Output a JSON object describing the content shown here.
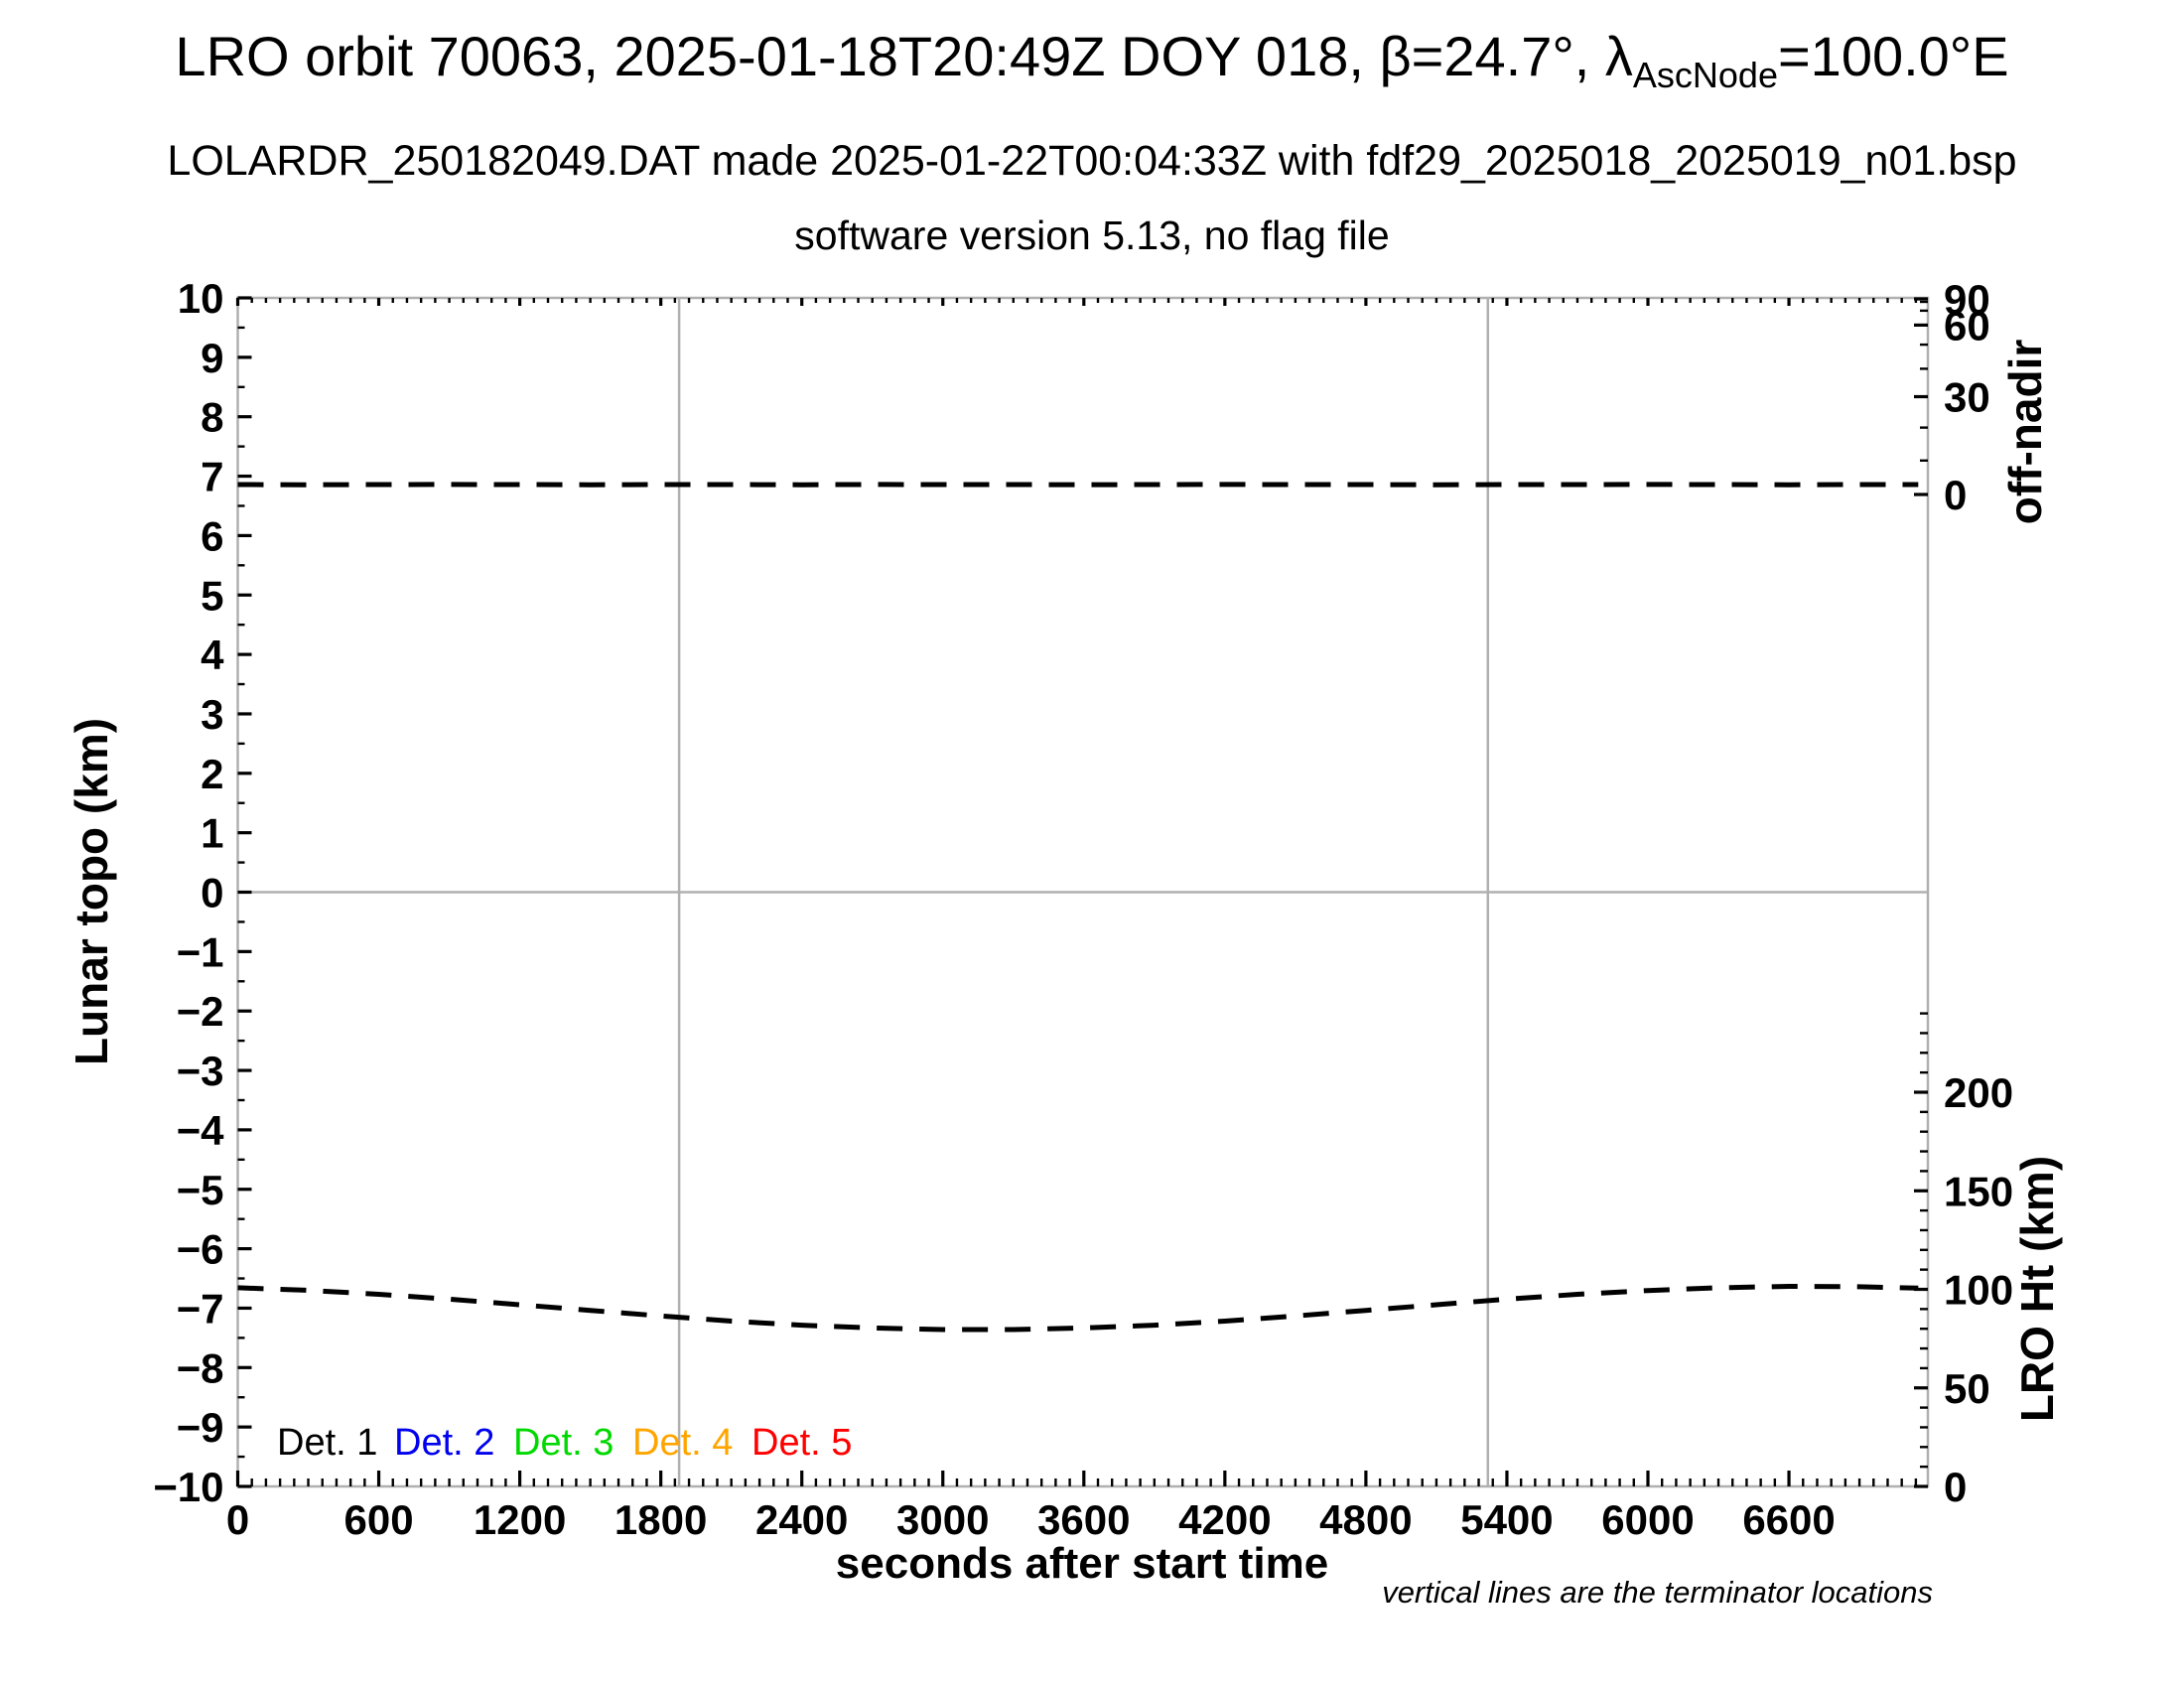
{
  "header": {
    "title_prefix": "LRO orbit 70063, 2025-01-18T20:49Z DOY 018, β=24.7°, λ",
    "title_sub": "AscNode",
    "title_suffix": "=100.0°E",
    "line2": "LOLARDR_250182049.DAT made 2025-01-22T00:04:33Z with fdf29_2025018_2025019_n01.bsp",
    "line3": "software version 5.13, no flag file"
  },
  "axes": {
    "x": {
      "label": "seconds after start time",
      "major_ticks": [
        0,
        600,
        1200,
        1800,
        2400,
        3000,
        3600,
        4200,
        4800,
        5400,
        6000,
        6600
      ],
      "minor_step_s": 60,
      "max_s": 7150
    },
    "left_y": {
      "label": "Lunar topo (km)",
      "major_ticks": [
        10,
        9,
        8,
        7,
        6,
        5,
        4,
        3,
        2,
        1,
        0,
        -1,
        -2,
        -3,
        -4,
        -5,
        -6,
        -7,
        -8,
        -9,
        -10
      ],
      "minor_step": 0.5
    },
    "right_off_nadir": {
      "label": "off-nadir",
      "major_ticks": [
        90,
        60,
        30,
        0
      ],
      "minor_ticks": [
        80,
        70,
        50,
        40,
        20,
        10
      ]
    },
    "right_ht": {
      "label": "LRO Ht (km)",
      "major_ticks": [
        200,
        150,
        100,
        50,
        0
      ],
      "minor_step_km": 10,
      "minor_max_km": 240
    }
  },
  "legend": {
    "items": [
      {
        "label": "Det. 1",
        "color": "#000000"
      },
      {
        "label": "Det. 2",
        "color": "#0000ee"
      },
      {
        "label": "Det. 3",
        "color": "#00d900"
      },
      {
        "label": "Det. 4",
        "color": "#ffa500"
      },
      {
        "label": "Det. 5",
        "color": "#ff0000"
      }
    ]
  },
  "annotations": {
    "terminator_note": "vertical lines are the terminator locations",
    "terminator_times_s": [
      1878,
      5319
    ]
  },
  "colors": {
    "frame_gray": "#b0b0b0",
    "line_black": "#000000"
  },
  "chart_data": {
    "type": "line",
    "title": "LRO orbit 70063, 2025-01-18T20:49Z DOY 018, β=24.7°, λAscNode=100.0°E",
    "xlabel": "seconds after start time",
    "ylabel_left": "Lunar topo (km)",
    "ylabel_right_top": "off-nadir",
    "ylabel_right_bottom": "LRO Ht (km)",
    "xlim": [
      0,
      7150
    ],
    "ylim_left_topo_km": [
      -10,
      10
    ],
    "right_off_nadir_ticks_deg": [
      0,
      30,
      60,
      90
    ],
    "right_ht_ticks_km": [
      0,
      50,
      100,
      150,
      200
    ],
    "grid": "terminator vertical lines + zero horizontal line only",
    "legend_position": "inside lower-left",
    "x": [
      0,
      300,
      600,
      900,
      1200,
      1500,
      1800,
      2100,
      2400,
      2700,
      3000,
      3300,
      3600,
      3900,
      4200,
      4500,
      4800,
      5100,
      5400,
      5700,
      6000,
      6300,
      6600,
      6900,
      7150
    ],
    "series": [
      {
        "name": "off-nadir angle",
        "unit": "deg",
        "axis": "right_off_nadir",
        "style": "dashed black",
        "values": [
          2.9,
          2.85,
          2.9,
          2.95,
          2.9,
          2.85,
          2.9,
          2.9,
          2.85,
          2.95,
          2.9,
          2.9,
          2.85,
          2.9,
          2.95,
          2.9,
          2.9,
          2.85,
          2.9,
          2.9,
          2.95,
          2.9,
          2.85,
          2.9,
          2.9
        ]
      },
      {
        "name": "LRO height",
        "unit": "km",
        "axis": "right_ht",
        "style": "dashed black",
        "values": [
          100.8,
          99.5,
          97.5,
          95.0,
          92.2,
          89.3,
          86.5,
          83.9,
          81.8,
          80.4,
          79.6,
          79.6,
          80.4,
          81.8,
          83.9,
          86.5,
          89.3,
          92.2,
          95.0,
          97.5,
          99.4,
          100.8,
          101.5,
          101.3,
          100.6
        ]
      }
    ],
    "detector_series_note": "Det. 1 - Det. 5 legend entries shown; no detector topography points visible in plot",
    "terminator_lines_s": [
      1878,
      5319
    ]
  }
}
